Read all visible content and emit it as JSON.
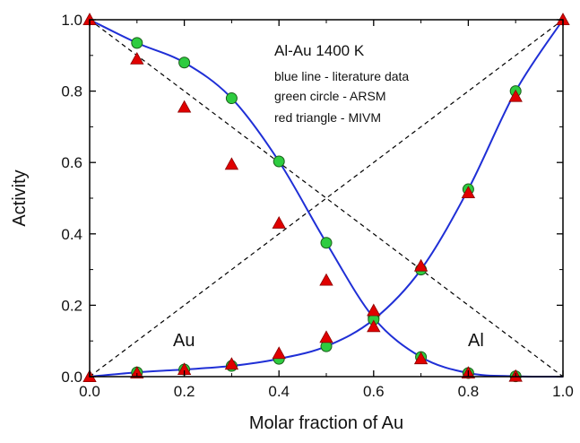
{
  "chart_data": {
    "type": "scatter",
    "title": "Al-Au 1400 K",
    "xlabel": "Molar fraction of Au",
    "ylabel": "Activity",
    "xlim": [
      0.0,
      1.0
    ],
    "ylim": [
      0.0,
      1.0
    ],
    "xticks": [
      "0.0",
      "0.2",
      "0.4",
      "0.6",
      "0.8",
      "1.0"
    ],
    "yticks": [
      "0.0",
      "0.2",
      "0.4",
      "0.6",
      "0.8",
      "1.0"
    ],
    "grid": false,
    "legend_lines": [
      "blue line - literature data",
      "green circle - ARSM",
      "red triangle - MIVM"
    ],
    "curve_labels": {
      "au": "Au",
      "al": "Al"
    },
    "colors": {
      "literature": "#1f2fd6",
      "arsm": "#2ecc40",
      "mivm": "#e00000",
      "reference": "#000000"
    },
    "reference_lines": [
      {
        "x": [
          0.0,
          1.0
        ],
        "y": [
          0.0,
          1.0
        ]
      },
      {
        "x": [
          0.0,
          1.0
        ],
        "y": [
          1.0,
          0.0
        ]
      }
    ],
    "series": [
      {
        "id": "literature_al",
        "marker": "line",
        "x": [
          0.0,
          0.1,
          0.2,
          0.3,
          0.4,
          0.5,
          0.6,
          0.7,
          0.8,
          0.9,
          1.0
        ],
        "y": [
          1.0,
          0.935,
          0.88,
          0.78,
          0.603,
          0.375,
          0.165,
          0.055,
          0.01,
          0.001,
          0.0
        ]
      },
      {
        "id": "literature_au",
        "marker": "line",
        "x": [
          0.0,
          0.1,
          0.2,
          0.3,
          0.4,
          0.5,
          0.6,
          0.7,
          0.8,
          0.9,
          1.0
        ],
        "y": [
          0.0,
          0.012,
          0.02,
          0.03,
          0.05,
          0.085,
          0.16,
          0.3,
          0.525,
          0.8,
          1.0
        ]
      },
      {
        "id": "arsm_al",
        "marker": "circle",
        "x": [
          0.1,
          0.2,
          0.3,
          0.4,
          0.5,
          0.6,
          0.7,
          0.8,
          0.9
        ],
        "y": [
          0.935,
          0.88,
          0.78,
          0.603,
          0.375,
          0.165,
          0.055,
          0.01,
          0.001
        ]
      },
      {
        "id": "arsm_au",
        "marker": "circle",
        "x": [
          0.1,
          0.2,
          0.3,
          0.4,
          0.5,
          0.6,
          0.7,
          0.8,
          0.9
        ],
        "y": [
          0.012,
          0.02,
          0.03,
          0.05,
          0.085,
          0.16,
          0.3,
          0.525,
          0.8
        ]
      },
      {
        "id": "mivm_al",
        "marker": "triangle",
        "x": [
          0.0,
          0.1,
          0.2,
          0.3,
          0.4,
          0.5,
          0.6,
          0.7,
          0.8,
          0.9
        ],
        "y": [
          1.0,
          0.89,
          0.755,
          0.595,
          0.43,
          0.27,
          0.14,
          0.05,
          0.01,
          0.001
        ]
      },
      {
        "id": "mivm_au",
        "marker": "triangle",
        "x": [
          0.0,
          0.1,
          0.2,
          0.3,
          0.4,
          0.5,
          0.6,
          0.7,
          0.8,
          0.9,
          1.0
        ],
        "y": [
          0.0,
          0.01,
          0.02,
          0.035,
          0.065,
          0.11,
          0.185,
          0.31,
          0.515,
          0.785,
          1.0
        ]
      }
    ]
  }
}
